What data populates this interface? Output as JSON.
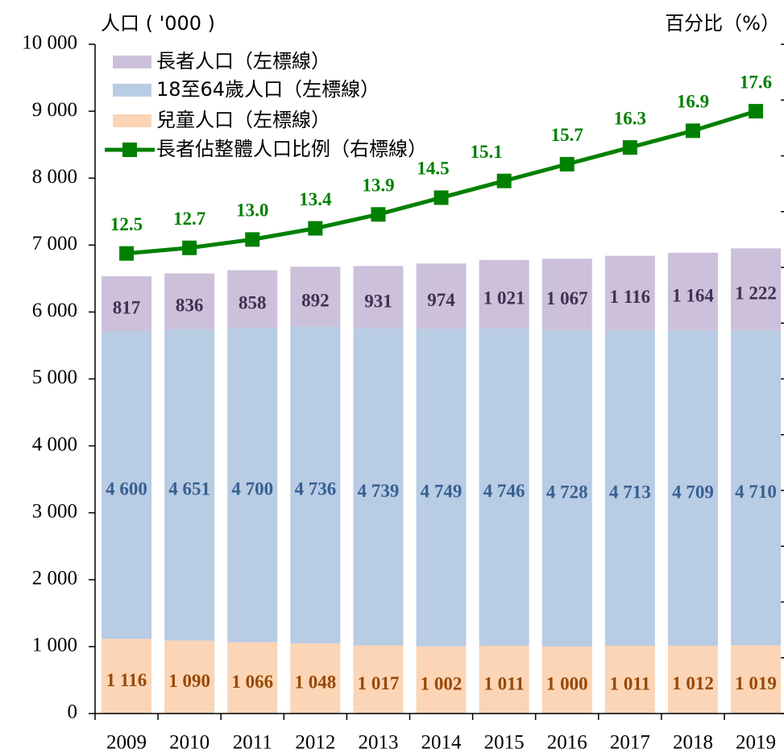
{
  "chart_data": {
    "type": "bar",
    "y_label": "人口 ( '000 )",
    "y2_label": "百分比（%）",
    "categories": [
      "2009",
      "2010",
      "2011",
      "2012",
      "2013",
      "2014",
      "2015",
      "2016",
      "2017",
      "2018",
      "2019"
    ],
    "series": [
      {
        "name": "兒童人口（左標線）",
        "color": "#fbd5b5",
        "label_color": "#984807",
        "values": [
          1116,
          1090,
          1066,
          1048,
          1017,
          1002,
          1011,
          1000,
          1011,
          1012,
          1019
        ],
        "value_labels": [
          "1 116",
          "1 090",
          "1 066",
          "1 048",
          "1 017",
          "1 002",
          "1 011",
          "1 000",
          "1 011",
          "1 012",
          "1 019"
        ]
      },
      {
        "name": "18至64歲人口（左標線）",
        "color": "#b8cce4",
        "label_color": "#376092",
        "values": [
          4600,
          4651,
          4700,
          4736,
          4739,
          4749,
          4746,
          4728,
          4713,
          4709,
          4710
        ],
        "value_labels": [
          "4 600",
          "4 651",
          "4 700",
          "4 736",
          "4 739",
          "4 749",
          "4 746",
          "4 728",
          "4 713",
          "4 709",
          "4 710"
        ]
      },
      {
        "name": "長者人口（左標線）",
        "color": "#ccc0da",
        "label_color": "#3f3151",
        "values": [
          817,
          836,
          858,
          892,
          931,
          974,
          1021,
          1067,
          1116,
          1164,
          1222
        ],
        "value_labels": [
          "817",
          "836",
          "858",
          "892",
          "931",
          "974",
          "1 021",
          "1 067",
          "1 116",
          "1 164",
          "1 222"
        ]
      },
      {
        "name": "長者佔整體人口比例（右標線）",
        "type": "line",
        "axis": "y2",
        "color": "#008000",
        "values": [
          12.5,
          12.7,
          13.0,
          13.4,
          13.9,
          14.5,
          15.1,
          15.7,
          16.3,
          16.9,
          17.6
        ],
        "value_labels": [
          "12.5",
          "12.7",
          "13.0",
          "13.4",
          "13.9",
          "14.5",
          "15.1",
          "15.7",
          "16.3",
          "16.9",
          "17.6"
        ]
      }
    ],
    "ylim": [
      0,
      10000
    ],
    "yticks": [
      0,
      {
        "value": 1000,
        "label": "1 000"
      },
      {
        "value": 2000,
        "label": "2 000"
      },
      {
        "value": 3000,
        "label": "3 000"
      },
      {
        "value": 4000,
        "label": "4 000"
      },
      {
        "value": 5000,
        "label": "5 000"
      },
      {
        "value": 6000,
        "label": "6 000"
      },
      {
        "value": 7000,
        "label": "7 000"
      },
      {
        "value": 8000,
        "label": "8 000"
      },
      {
        "value": 9000,
        "label": "9 000"
      },
      {
        "value": 10000,
        "label": "10 000"
      }
    ],
    "y2lim": [
      -4,
      20
    ],
    "y2ticks": [
      -4,
      -2,
      0,
      2,
      4,
      6,
      8,
      10,
      12,
      14,
      16,
      18,
      20
    ]
  }
}
